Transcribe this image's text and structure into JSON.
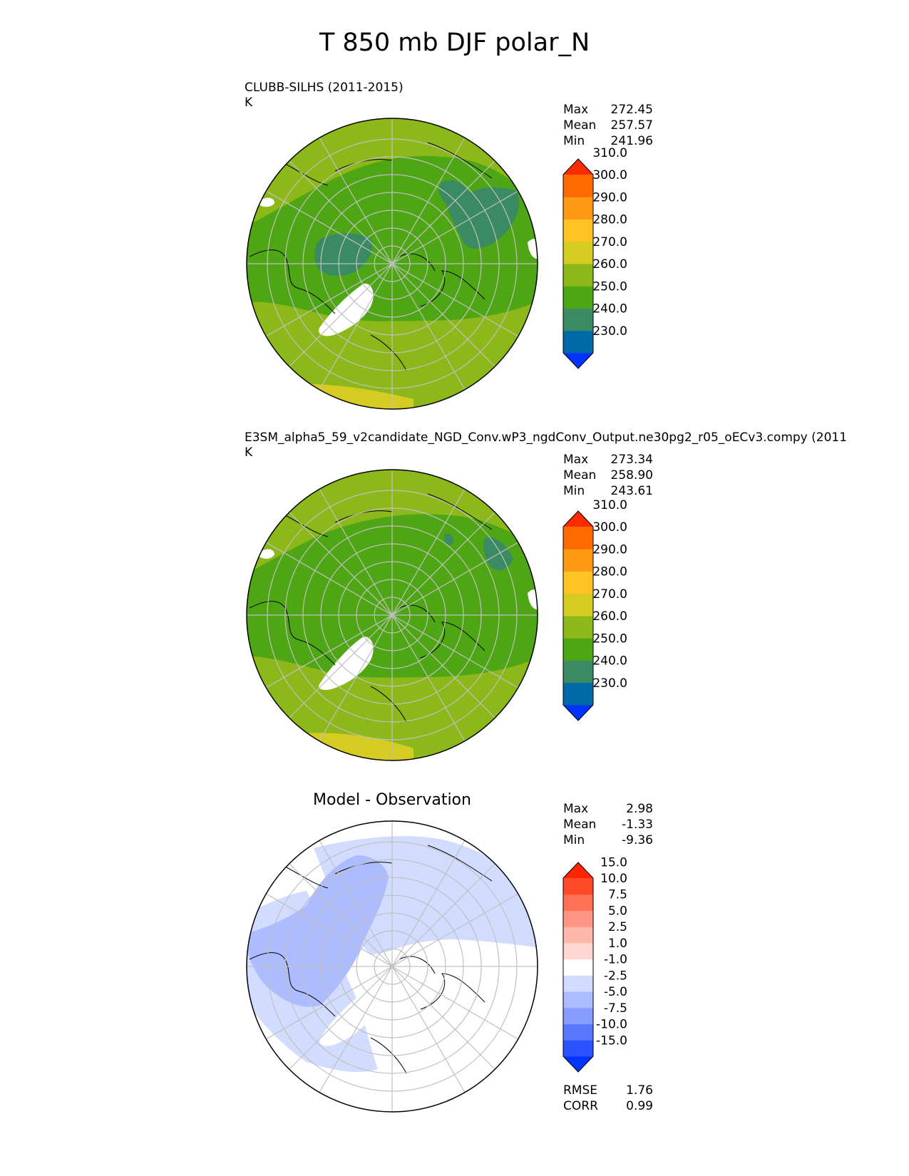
{
  "title": "T 850 mb DJF polar_N",
  "panels": [
    {
      "label_line1": "CLUBB-SILHS (2011-2015)",
      "label_line2": "K",
      "stats": {
        "max_label": "Max",
        "max": "272.45",
        "mean_label": "Mean",
        "mean": "257.57",
        "min_label": "Min",
        "min": "241.96"
      }
    },
    {
      "label_line1": "E3SM_alpha5_59_v2candidate_NGD_Conv.wP3_ngdConv_Output.ne30pg2_r05_oECv3.compy (2011",
      "label_line2": "K",
      "stats": {
        "max_label": "Max",
        "max": "273.34",
        "mean_label": "Mean",
        "mean": "258.90",
        "min_label": "Min",
        "min": "243.61"
      }
    },
    {
      "title": "Model - Observation",
      "stats": {
        "max_label": "Max",
        "max": "2.98",
        "mean_label": "Mean",
        "mean": "-1.33",
        "min_label": "Min",
        "min": "-9.36"
      },
      "metrics": {
        "rmse_label": "RMSE",
        "rmse": "1.76",
        "corr_label": "CORR",
        "corr": "0.99"
      }
    }
  ],
  "colorbars": {
    "abs": {
      "colors": [
        "#0033ff",
        "#006aa8",
        "#3a8a64",
        "#4ea614",
        "#8db81a",
        "#d4cc22",
        "#ffc323",
        "#ff9a14",
        "#ff6a00",
        "#ff2b00"
      ],
      "labels": [
        "230.0",
        "240.0",
        "250.0",
        "260.0",
        "270.0",
        "280.0",
        "290.0",
        "300.0",
        "310.0"
      ]
    },
    "diff": {
      "colors": [
        "#0033ff",
        "#2a52ff",
        "#5a78ff",
        "#879cff",
        "#adbbff",
        "#d2dcff",
        "#ffffff",
        "#ffd7d2",
        "#ffb8ac",
        "#ff9582",
        "#ff7055",
        "#ff4a2a",
        "#ff2500"
      ],
      "labels": [
        "-15.0",
        "-10.0",
        "-7.5",
        "-5.0",
        "-2.5",
        "-1.0",
        "1.0",
        "2.5",
        "5.0",
        "7.5",
        "10.0",
        "15.0"
      ]
    }
  },
  "map_colors": {
    "green_dark": "#4ea614",
    "green_light": "#8db81a",
    "yellow": "#d4cc22",
    "teal": "#3a8a64",
    "diff_light": "#d2dcff",
    "diff_mid": "#adbbff",
    "diff_dark": "#879cff"
  }
}
